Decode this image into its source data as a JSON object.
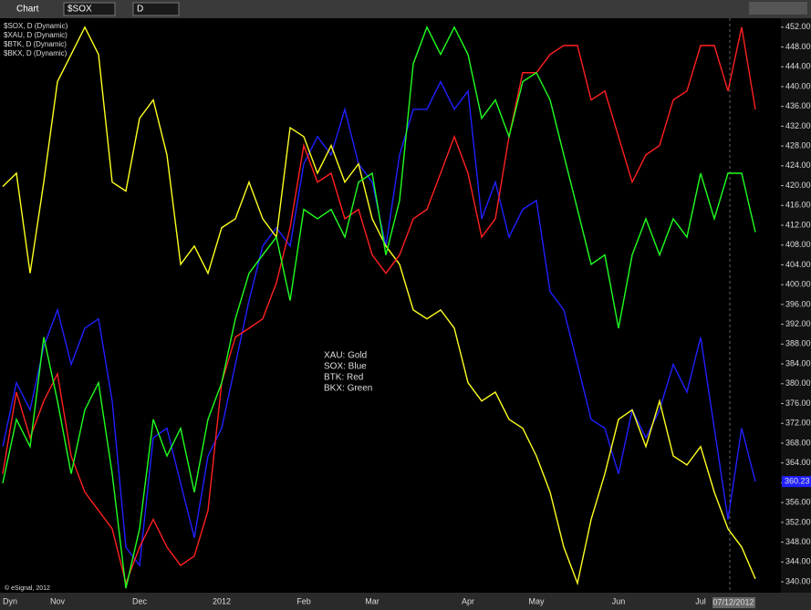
{
  "toolbar": {
    "window_title": "Chart",
    "symbol": "$SOX",
    "interval": "D"
  },
  "chart_data": {
    "type": "line",
    "categories": [
      null,
      null,
      null,
      null,
      "Nov",
      null,
      null,
      null,
      null,
      null,
      "Dec",
      null,
      null,
      null,
      null,
      null,
      "2012",
      null,
      null,
      null,
      null,
      null,
      "Feb",
      null,
      null,
      null,
      null,
      "Mar",
      null,
      null,
      null,
      null,
      null,
      null,
      "Apr",
      null,
      null,
      null,
      null,
      "May",
      null,
      null,
      null,
      null,
      null,
      "Jun",
      null,
      null,
      null,
      null,
      null,
      "Jul",
      null,
      null,
      null,
      null
    ],
    "series": [
      {
        "name": "$SOX, D (Dynamic)",
        "color": "#2020ff",
        "last_value": 360.23,
        "values": [
          367.3,
          380.2,
          374.7,
          387.5,
          394.9,
          383.9,
          391.2,
          393.1,
          376.5,
          347.0,
          343.3,
          369.1,
          371.0,
          359.9,
          348.9,
          365.4,
          371.0,
          383.9,
          396.8,
          407.8,
          411.5,
          407.8,
          424.4,
          429.9,
          426.2,
          435.4,
          424.4,
          420.7,
          407.8,
          426.2,
          435.4,
          435.4,
          441.0,
          435.4,
          439.1,
          413.3,
          420.7,
          409.6,
          415.2,
          417.0,
          398.6,
          394.9,
          383.9,
          372.8,
          371.0,
          361.8,
          374.7,
          369.1,
          374.7,
          383.9,
          378.3,
          389.4,
          371.0,
          352.6,
          371.0,
          360.23
        ]
      },
      {
        "name": "$XAU, D (Dynamic)",
        "color": "#ffff20",
        "values": [
          419.8,
          422.5,
          402.3,
          420.7,
          441.0,
          446.5,
          452.0,
          446.5,
          420.7,
          418.9,
          433.6,
          437.3,
          426.2,
          404.1,
          407.8,
          402.3,
          411.5,
          413.3,
          420.7,
          413.3,
          409.6,
          431.7,
          429.9,
          422.5,
          428.1,
          420.7,
          424.4,
          413.3,
          407.8,
          404.1,
          394.9,
          393.1,
          394.9,
          391.2,
          380.2,
          376.5,
          378.3,
          372.8,
          371.0,
          365.4,
          358.1,
          347.0,
          339.7,
          352.6,
          361.8,
          372.8,
          374.7,
          367.3,
          376.5,
          365.4,
          363.6,
          367.3,
          358.1,
          350.7,
          347.0,
          340.6
        ]
      },
      {
        "name": "$BTK, D (Dynamic)",
        "color": "#ff2020",
        "values": [
          361.8,
          378.3,
          369.1,
          376.5,
          382.0,
          365.4,
          358.1,
          354.4,
          350.7,
          339.7,
          347.0,
          352.6,
          347.0,
          343.3,
          345.2,
          354.4,
          380.2,
          389.4,
          391.2,
          393.1,
          400.4,
          411.5,
          428.1,
          420.7,
          422.5,
          413.3,
          415.2,
          406.0,
          402.3,
          406.0,
          413.3,
          415.2,
          422.5,
          429.9,
          422.5,
          409.6,
          413.3,
          429.9,
          442.8,
          442.8,
          446.5,
          448.3,
          448.3,
          437.3,
          439.1,
          429.9,
          420.7,
          426.2,
          428.1,
          437.3,
          439.1,
          448.3,
          448.3,
          439.1,
          452.0,
          435.4
        ]
      },
      {
        "name": "$BKX, D (Dynamic)",
        "color": "#20ff20",
        "values": [
          359.9,
          372.8,
          367.3,
          389.4,
          376.5,
          361.8,
          374.7,
          380.2,
          361.8,
          338.7,
          350.7,
          372.8,
          365.4,
          371.0,
          358.1,
          372.8,
          380.2,
          393.1,
          402.3,
          406.0,
          409.6,
          396.8,
          415.2,
          413.3,
          415.2,
          409.6,
          420.7,
          422.5,
          406.0,
          417.0,
          444.6,
          452.0,
          446.5,
          452.0,
          446.5,
          433.6,
          437.3,
          429.9,
          441.0,
          442.8,
          437.3,
          426.2,
          415.2,
          404.1,
          406.0,
          391.2,
          406.0,
          413.3,
          406.0,
          413.3,
          409.6,
          422.5,
          413.3,
          422.5,
          422.5,
          410.6
        ]
      }
    ],
    "ylim": [
      337.8,
      453.8
    ],
    "yticks": [
      {
        "value": 340,
        "label": "340.00"
      },
      {
        "value": 344,
        "label": "344.00"
      },
      {
        "value": 348,
        "label": "348.00"
      },
      {
        "value": 352,
        "label": "352.00"
      },
      {
        "value": 356,
        "label": "356.00"
      },
      {
        "value": 360,
        "label": "360.00"
      },
      {
        "value": 364,
        "label": "364.00"
      },
      {
        "value": 368,
        "label": "368.00"
      },
      {
        "value": 372,
        "label": "372.00"
      },
      {
        "value": 376,
        "label": "376.00"
      },
      {
        "value": 380,
        "label": "380.00"
      },
      {
        "value": 384,
        "label": "384.00"
      },
      {
        "value": 388,
        "label": "388.00"
      },
      {
        "value": 392,
        "label": "392.00"
      },
      {
        "value": 396,
        "label": "396.00"
      },
      {
        "value": 400,
        "label": "400.00"
      },
      {
        "value": 404,
        "label": "404.00"
      },
      {
        "value": 408,
        "label": "408.00"
      },
      {
        "value": 412,
        "label": "412.00"
      },
      {
        "value": 416,
        "label": "416.00"
      },
      {
        "value": 420,
        "label": "420.00"
      },
      {
        "value": 424,
        "label": "424.00"
      },
      {
        "value": 428,
        "label": "428.00"
      },
      {
        "value": 432,
        "label": "432.00"
      },
      {
        "value": 436,
        "label": "436.00"
      },
      {
        "value": 440,
        "label": "440.00"
      },
      {
        "value": 444,
        "label": "444.00"
      },
      {
        "value": 448,
        "label": "448.00"
      },
      {
        "value": 452,
        "label": "452.00"
      }
    ],
    "annotations": [
      "XAU:  Gold",
      "SOX:  Blue",
      "BTK:  Red",
      "BKX:  Green"
    ],
    "copyright": "© eSignal, 2012",
    "scale_mode": "Dyn",
    "cursor_date": "07/12/2012",
    "legend": "top-left"
  }
}
